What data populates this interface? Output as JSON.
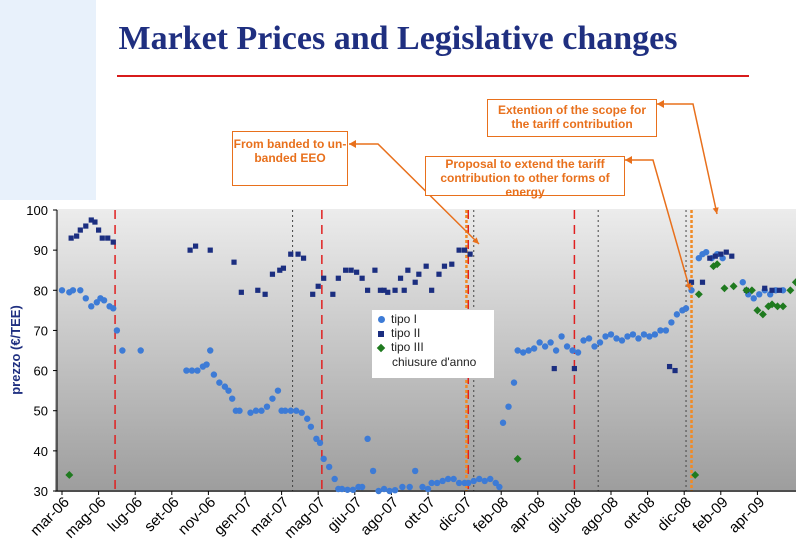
{
  "slide": {
    "title": "Market Prices and Legislative changes"
  },
  "callouts": [
    {
      "id": "extention",
      "text": "Extention of the scope for the tariff contribution"
    },
    {
      "id": "banded",
      "text": "From banded to un-banded EEO"
    },
    {
      "id": "proposal",
      "text": "Proposal to extend the tariff contribution to other forms of energy"
    }
  ],
  "chart_data": {
    "type": "scatter",
    "title": "",
    "xlabel": "",
    "ylabel": "prezzo (€/TEE)",
    "ylim": [
      30,
      100
    ],
    "yticks": [
      "30",
      "40",
      "50",
      "60",
      "70",
      "80",
      "90",
      "100"
    ],
    "categories": [
      "mar-06",
      "mag-06",
      "lug-06",
      "set-06",
      "nov-06",
      "gen-07",
      "mar-07",
      "mag-07",
      "giu-07",
      "ago-07",
      "ott-07",
      "dic-07",
      "feb-08",
      "apr-08",
      "giu-08",
      "ago-08",
      "ott-08",
      "dic-08",
      "feb-09",
      "apr-09"
    ],
    "grid": "vertical dotted",
    "legend": {
      "position": "center",
      "entries": [
        "tipo I",
        "tipo II",
        "tipo III",
        "chiusure d'anno"
      ]
    },
    "reference_lines": [
      {
        "style": "red dashed",
        "x": 1.45
      },
      {
        "style": "red dashed",
        "x": 7.1
      },
      {
        "style": "red dashed",
        "x": 11.1
      },
      {
        "style": "red dashed",
        "x": 14.0
      },
      {
        "style": "orange dotted",
        "x": 11.05
      },
      {
        "style": "orange dotted",
        "x": 17.2
      }
    ],
    "series": [
      {
        "name": "tipo I",
        "color": "#3d7bd6",
        "marker": "circle",
        "points": [
          [
            0.0,
            80
          ],
          [
            0.2,
            79.5
          ],
          [
            0.3,
            80
          ],
          [
            0.5,
            80
          ],
          [
            0.65,
            78
          ],
          [
            0.8,
            76
          ],
          [
            0.95,
            77
          ],
          [
            1.05,
            78
          ],
          [
            1.15,
            77.5
          ],
          [
            1.3,
            76
          ],
          [
            1.4,
            75.5
          ],
          [
            1.5,
            70
          ],
          [
            1.65,
            65
          ],
          [
            2.15,
            65
          ],
          [
            3.4,
            60
          ],
          [
            3.55,
            60
          ],
          [
            3.7,
            60
          ],
          [
            3.85,
            61
          ],
          [
            3.95,
            61.5
          ],
          [
            4.05,
            65
          ],
          [
            4.15,
            59
          ],
          [
            4.3,
            57
          ],
          [
            4.45,
            56
          ],
          [
            4.55,
            55
          ],
          [
            4.65,
            53
          ],
          [
            4.75,
            50
          ],
          [
            4.85,
            50
          ],
          [
            5.15,
            49.5
          ],
          [
            5.3,
            50
          ],
          [
            5.45,
            50
          ],
          [
            5.6,
            51
          ],
          [
            5.75,
            53
          ],
          [
            5.9,
            55
          ],
          [
            6.0,
            50
          ],
          [
            6.1,
            50
          ],
          [
            6.25,
            50
          ],
          [
            6.4,
            50
          ],
          [
            6.55,
            49.5
          ],
          [
            6.7,
            48
          ],
          [
            6.8,
            46
          ],
          [
            6.95,
            43
          ],
          [
            7.05,
            42
          ],
          [
            7.15,
            38
          ],
          [
            7.3,
            36
          ],
          [
            7.45,
            33
          ],
          [
            7.55,
            30.5
          ],
          [
            7.65,
            30.5
          ],
          [
            7.8,
            30.3
          ],
          [
            7.95,
            30.3
          ],
          [
            8.1,
            31
          ],
          [
            8.2,
            31
          ],
          [
            8.35,
            43
          ],
          [
            8.5,
            35
          ],
          [
            8.65,
            30
          ],
          [
            8.8,
            30.5
          ],
          [
            8.95,
            30
          ],
          [
            9.1,
            30.2
          ],
          [
            9.3,
            31
          ],
          [
            9.5,
            31
          ],
          [
            9.65,
            35
          ],
          [
            9.85,
            31
          ],
          [
            10.0,
            30.5
          ],
          [
            10.1,
            32
          ],
          [
            10.25,
            32
          ],
          [
            10.4,
            32.5
          ],
          [
            10.55,
            33
          ],
          [
            10.7,
            33
          ],
          [
            10.85,
            32
          ],
          [
            11.0,
            32
          ],
          [
            11.1,
            32
          ],
          [
            11.25,
            32.5
          ],
          [
            11.4,
            33
          ],
          [
            11.55,
            32.5
          ],
          [
            11.7,
            33
          ],
          [
            11.85,
            32
          ],
          [
            11.95,
            31
          ],
          [
            12.05,
            47
          ],
          [
            12.2,
            51
          ],
          [
            12.35,
            57
          ],
          [
            12.45,
            65
          ],
          [
            12.6,
            64.5
          ],
          [
            12.75,
            65
          ],
          [
            12.9,
            65.5
          ],
          [
            13.05,
            67
          ],
          [
            13.2,
            66
          ],
          [
            13.35,
            67
          ],
          [
            13.5,
            65
          ],
          [
            13.65,
            68.5
          ],
          [
            13.8,
            66
          ],
          [
            13.95,
            65
          ],
          [
            14.1,
            64.5
          ],
          [
            14.25,
            67.5
          ],
          [
            14.4,
            68
          ],
          [
            14.55,
            66
          ],
          [
            14.7,
            67
          ],
          [
            14.85,
            68.5
          ],
          [
            15.0,
            69
          ],
          [
            15.15,
            68
          ],
          [
            15.3,
            67.5
          ],
          [
            15.45,
            68.5
          ],
          [
            15.6,
            69
          ],
          [
            15.75,
            68
          ],
          [
            15.9,
            69
          ],
          [
            16.05,
            68.5
          ],
          [
            16.2,
            69
          ],
          [
            16.35,
            70
          ],
          [
            16.5,
            70
          ],
          [
            16.65,
            72
          ],
          [
            16.8,
            74
          ],
          [
            16.95,
            75
          ],
          [
            17.05,
            75.5
          ],
          [
            17.2,
            80
          ],
          [
            17.4,
            88
          ],
          [
            17.5,
            89
          ],
          [
            17.6,
            89.5
          ],
          [
            17.75,
            88
          ],
          [
            17.9,
            89
          ],
          [
            18.05,
            88
          ],
          [
            18.6,
            82
          ],
          [
            18.75,
            79
          ],
          [
            18.9,
            78
          ],
          [
            19.05,
            79
          ],
          [
            19.2,
            80
          ],
          [
            19.35,
            79
          ],
          [
            19.5,
            80
          ],
          [
            19.7,
            80
          ]
        ]
      },
      {
        "name": "tipo II",
        "color": "#1b2e80",
        "marker": "square",
        "points": [
          [
            0.25,
            93
          ],
          [
            0.4,
            93.5
          ],
          [
            0.5,
            95
          ],
          [
            0.65,
            96
          ],
          [
            0.8,
            97.5
          ],
          [
            0.9,
            97
          ],
          [
            1.0,
            95
          ],
          [
            1.1,
            93
          ],
          [
            1.25,
            93
          ],
          [
            1.4,
            92
          ],
          [
            3.5,
            90
          ],
          [
            3.65,
            91
          ],
          [
            4.05,
            90
          ],
          [
            4.7,
            87
          ],
          [
            4.9,
            79.5
          ],
          [
            5.35,
            80
          ],
          [
            5.55,
            79
          ],
          [
            5.75,
            84
          ],
          [
            5.95,
            85
          ],
          [
            6.05,
            85.5
          ],
          [
            6.25,
            89
          ],
          [
            6.45,
            89
          ],
          [
            6.6,
            88
          ],
          [
            6.85,
            79
          ],
          [
            7.0,
            81
          ],
          [
            7.15,
            83
          ],
          [
            7.4,
            79
          ],
          [
            7.55,
            83
          ],
          [
            7.75,
            85
          ],
          [
            7.9,
            85
          ],
          [
            8.05,
            84.5
          ],
          [
            8.2,
            83
          ],
          [
            8.35,
            80
          ],
          [
            8.55,
            85
          ],
          [
            8.7,
            80
          ],
          [
            8.8,
            80
          ],
          [
            8.9,
            79.5
          ],
          [
            9.1,
            80
          ],
          [
            9.25,
            83
          ],
          [
            9.35,
            80
          ],
          [
            9.45,
            85
          ],
          [
            9.65,
            82
          ],
          [
            9.75,
            84
          ],
          [
            9.95,
            86
          ],
          [
            10.1,
            80
          ],
          [
            10.3,
            84
          ],
          [
            10.45,
            86
          ],
          [
            10.65,
            86.5
          ],
          [
            10.85,
            90
          ],
          [
            11.0,
            90
          ],
          [
            11.15,
            89
          ],
          [
            13.45,
            60.5
          ],
          [
            14.0,
            60.5
          ],
          [
            16.6,
            61
          ],
          [
            16.75,
            60
          ],
          [
            17.2,
            82
          ],
          [
            17.5,
            82
          ],
          [
            17.7,
            88
          ],
          [
            17.85,
            88.5
          ],
          [
            18.0,
            89
          ],
          [
            18.15,
            89.5
          ],
          [
            18.3,
            88.5
          ],
          [
            18.7,
            80
          ],
          [
            19.2,
            80.5
          ],
          [
            19.4,
            80
          ],
          [
            19.6,
            80
          ]
        ]
      },
      {
        "name": "tipo III",
        "color": "#1f7a1f",
        "marker": "diamond",
        "points": [
          [
            0.2,
            34
          ],
          [
            12.45,
            38
          ],
          [
            17.3,
            34
          ],
          [
            17.4,
            79
          ],
          [
            17.8,
            86
          ],
          [
            17.9,
            86.5
          ],
          [
            18.1,
            80.5
          ],
          [
            18.35,
            81
          ],
          [
            18.7,
            80
          ],
          [
            18.85,
            80
          ],
          [
            19.0,
            75
          ],
          [
            19.15,
            74
          ],
          [
            19.3,
            76
          ],
          [
            19.4,
            76.5
          ],
          [
            19.55,
            76
          ],
          [
            19.7,
            76
          ],
          [
            19.9,
            80
          ],
          [
            20.05,
            82
          ],
          [
            20.2,
            80
          ],
          [
            20.35,
            78.5
          ]
        ]
      }
    ]
  }
}
